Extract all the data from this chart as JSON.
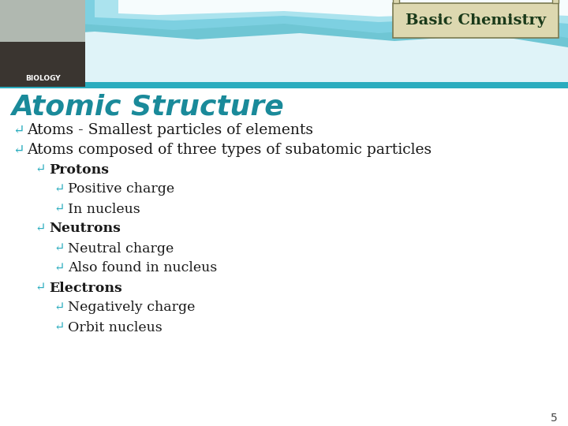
{
  "title": "Atomic Structure",
  "header_label": "Basic Chemistry",
  "slide_bg": "#ffffff",
  "teal_bar_color": "#2aacbe",
  "title_color": "#1a8a9a",
  "header_bg": "#ddd8b0",
  "header_border_color": "#7a7a50",
  "header_text_color": "#1a3a1a",
  "page_number": "5",
  "bullet_color": "#2aacbe",
  "text_color": "#1a1a1a",
  "lines": [
    {
      "text": "Atoms - Smallest particles of elements",
      "indent": 0,
      "bold": false,
      "fontsize": 13.5
    },
    {
      "text": "Atoms composed of three types of subatomic particles",
      "indent": 0,
      "bold": false,
      "fontsize": 13.5
    },
    {
      "text": "Protons",
      "indent": 1,
      "bold": true,
      "fontsize": 12.5
    },
    {
      "text": "Positive charge",
      "indent": 2,
      "bold": false,
      "fontsize": 12.5
    },
    {
      "text": "In nucleus",
      "indent": 2,
      "bold": false,
      "fontsize": 12.5
    },
    {
      "text": "Neutrons",
      "indent": 1,
      "bold": true,
      "fontsize": 12.5
    },
    {
      "text": "Neutral charge",
      "indent": 2,
      "bold": false,
      "fontsize": 12.5
    },
    {
      "text": "Also found in nucleus",
      "indent": 2,
      "bold": false,
      "fontsize": 12.5
    },
    {
      "text": "Electrons",
      "indent": 1,
      "bold": true,
      "fontsize": 12.5
    },
    {
      "text": "Negatively charge",
      "indent": 2,
      "bold": false,
      "fontsize": 12.5
    },
    {
      "text": "Orbit nucleus",
      "indent": 2,
      "bold": false,
      "fontsize": 12.5
    }
  ],
  "header_wave_colors": [
    "#7dd8e8",
    "#5bc8d8",
    "#a8e8f4",
    "#c8f0f8"
  ],
  "bio_bg": "#2a2a2a",
  "bio_text_color": "#e0e0e0"
}
